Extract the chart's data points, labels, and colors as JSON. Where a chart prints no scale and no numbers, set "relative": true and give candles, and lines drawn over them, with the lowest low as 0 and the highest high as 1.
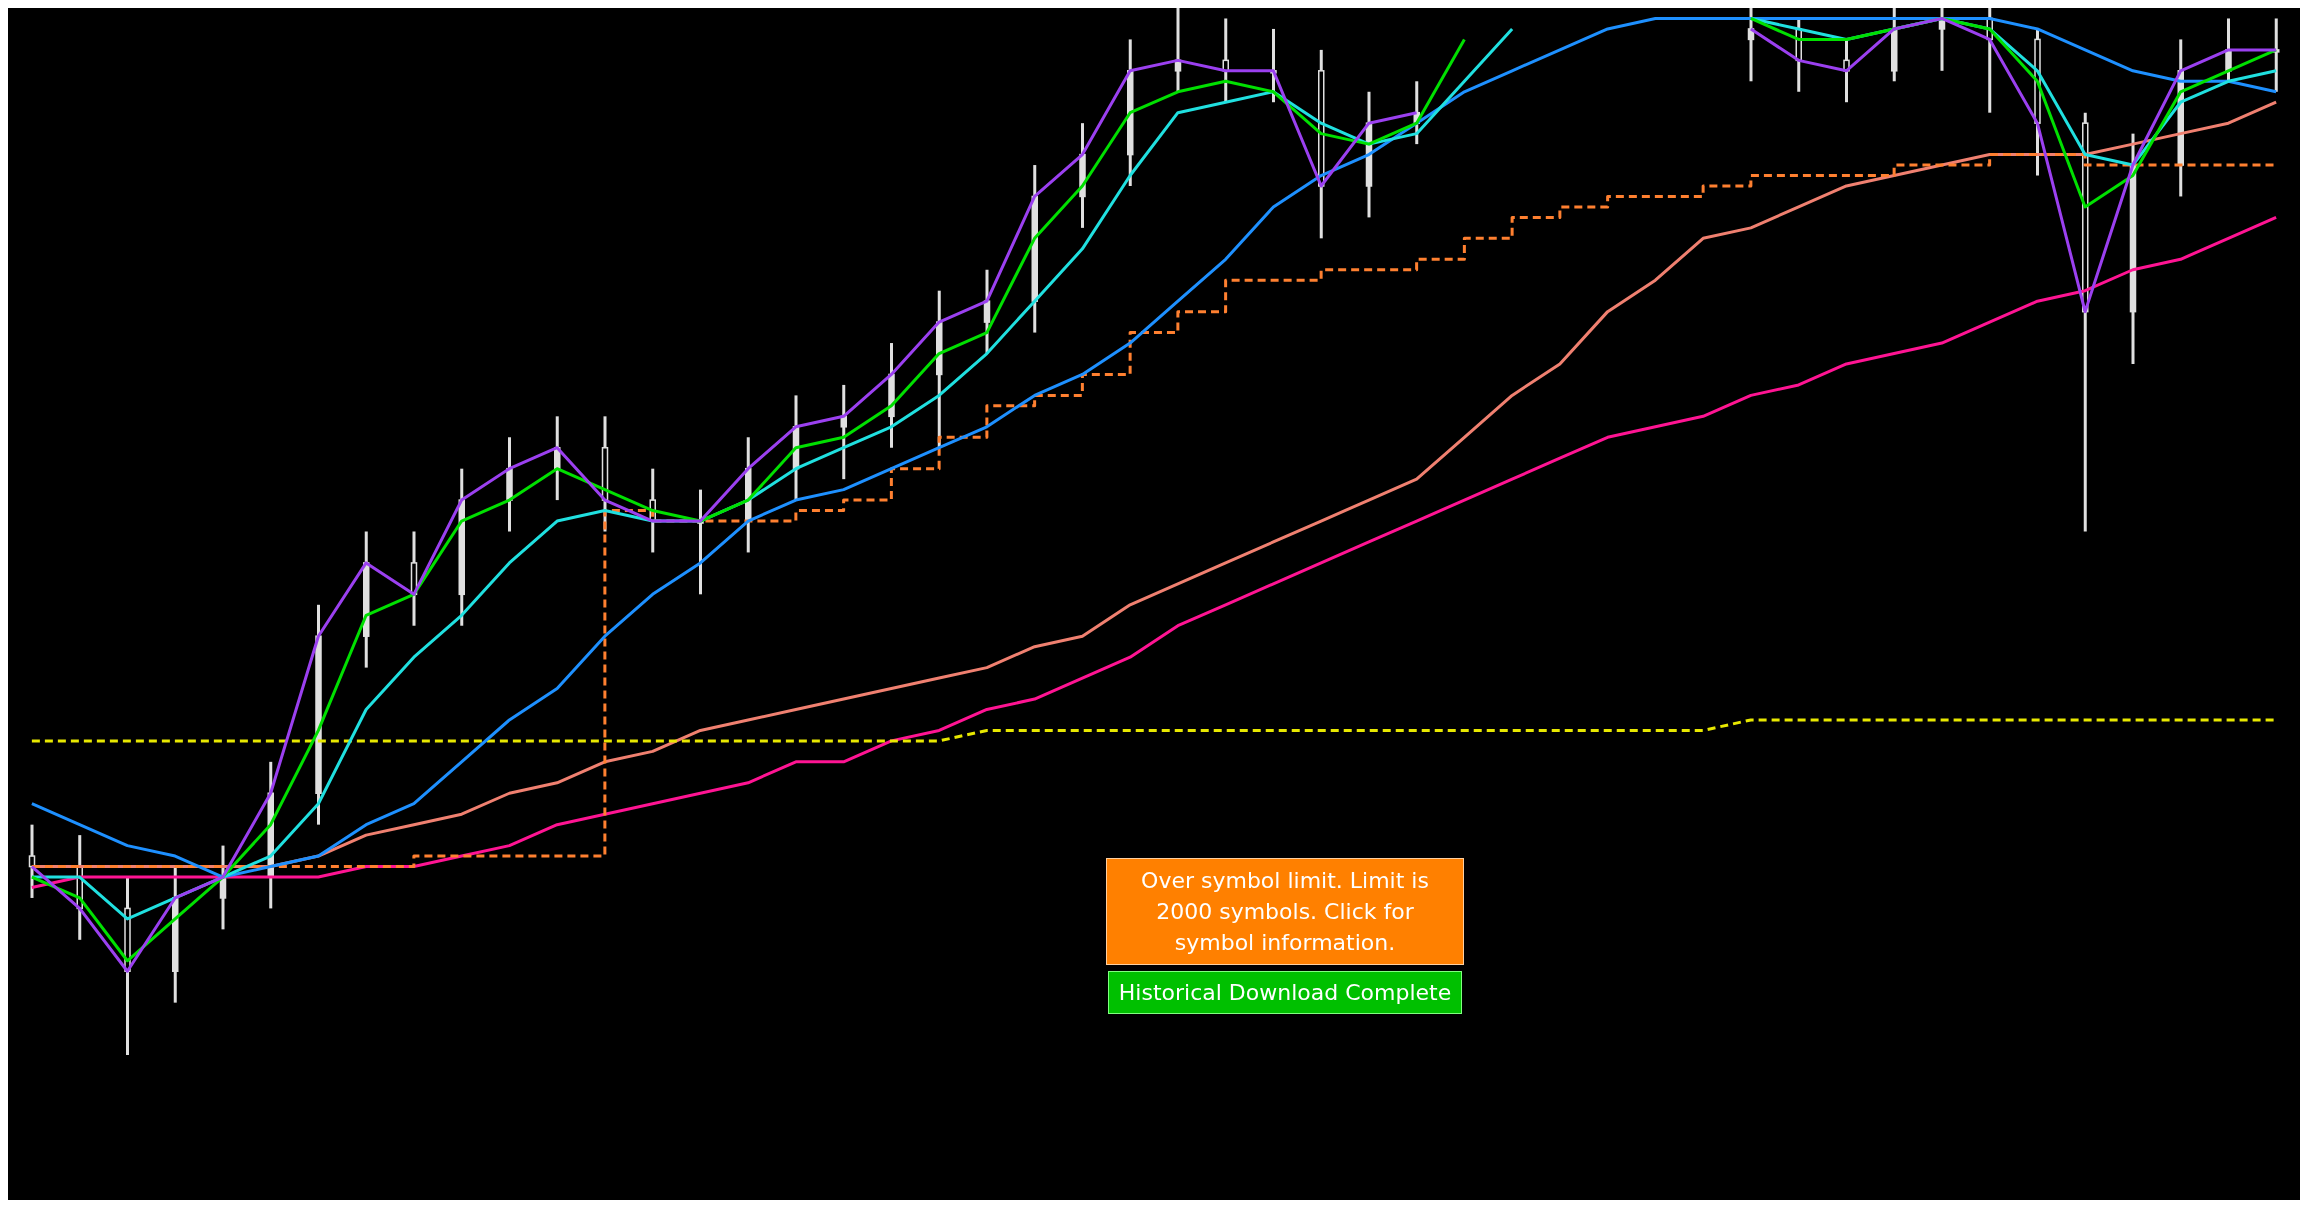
{
  "chart_data": {
    "type": "candlestick",
    "relative": true,
    "tick_labels": false,
    "color": "#e0e0e0",
    "categories": [
      null,
      null,
      null,
      null,
      null,
      null,
      null,
      null,
      null,
      null,
      null,
      null,
      null,
      null,
      null,
      null,
      null,
      null,
      null,
      null,
      null,
      null,
      null,
      null,
      null,
      null,
      null,
      null,
      null,
      null,
      null,
      null,
      null,
      null,
      null,
      null,
      null,
      null,
      null,
      null,
      null,
      null,
      null,
      null,
      null,
      null,
      null,
      null
    ],
    "ohlc": [
      [
        0.19,
        0.22,
        0.15,
        0.18
      ],
      [
        0.18,
        0.21,
        0.11,
        0.14
      ],
      [
        0.14,
        0.17,
        0.0,
        0.08
      ],
      [
        0.08,
        0.18,
        0.05,
        0.15
      ],
      [
        0.15,
        0.2,
        0.12,
        0.17
      ],
      [
        0.17,
        0.28,
        0.14,
        0.25
      ],
      [
        0.25,
        0.43,
        0.22,
        0.4
      ],
      [
        0.4,
        0.5,
        0.37,
        0.47
      ],
      [
        0.47,
        0.5,
        0.41,
        0.44
      ],
      [
        0.44,
        0.56,
        0.41,
        0.53
      ],
      [
        0.53,
        0.59,
        0.5,
        0.56
      ],
      [
        0.56,
        0.61,
        0.53,
        0.58
      ],
      [
        0.58,
        0.61,
        0.5,
        0.53
      ],
      [
        0.53,
        0.56,
        0.48,
        0.51
      ],
      [
        0.51,
        0.54,
        0.44,
        0.51
      ],
      [
        0.51,
        0.59,
        0.48,
        0.56
      ],
      [
        0.56,
        0.63,
        0.53,
        0.6
      ],
      [
        0.6,
        0.64,
        0.55,
        0.61
      ],
      [
        0.61,
        0.68,
        0.58,
        0.65
      ],
      [
        0.65,
        0.73,
        0.58,
        0.7
      ],
      [
        0.7,
        0.75,
        0.67,
        0.72
      ],
      [
        0.72,
        0.85,
        0.69,
        0.82
      ],
      [
        0.82,
        0.89,
        0.79,
        0.86
      ],
      [
        0.86,
        0.97,
        0.83,
        0.94
      ],
      [
        0.94,
        1.0,
        0.92,
        0.95
      ],
      [
        0.95,
        0.99,
        0.91,
        0.94
      ],
      [
        0.94,
        0.98,
        0.91,
        0.94
      ],
      [
        0.94,
        0.96,
        0.78,
        0.83
      ],
      [
        0.83,
        0.92,
        0.8,
        0.89
      ],
      [
        0.89,
        0.93,
        0.87,
        0.9
      ],
      null,
      null,
      null,
      null,
      null,
      null,
      [
        0.97,
        1.0,
        0.93,
        0.98
      ],
      [
        0.98,
        0.99,
        0.92,
        0.95
      ],
      [
        0.95,
        0.97,
        0.91,
        0.94
      ],
      [
        0.94,
        1.0,
        0.93,
        0.98
      ],
      [
        0.98,
        1.0,
        0.94,
        0.99
      ],
      [
        0.99,
        1.0,
        0.9,
        0.97
      ],
      [
        0.97,
        0.98,
        0.84,
        0.89
      ],
      [
        0.89,
        0.9,
        0.5,
        0.71
      ],
      [
        0.71,
        0.88,
        0.66,
        0.85
      ],
      [
        0.85,
        0.97,
        0.82,
        0.94
      ],
      [
        0.94,
        0.99,
        0.93,
        0.96
      ],
      [
        0.96,
        0.99,
        0.92,
        0.96
      ]
    ],
    "series": [
      {
        "type": "line",
        "color": "#f08070",
        "values": [
          0.18,
          0.18,
          0.18,
          0.18,
          0.18,
          0.18,
          0.19,
          0.21,
          0.22,
          0.23,
          0.25,
          0.26,
          0.28,
          0.29,
          0.31,
          0.32,
          0.33,
          0.34,
          0.35,
          0.36,
          0.37,
          0.39,
          0.4,
          0.43,
          0.45,
          0.47,
          0.49,
          0.51,
          0.53,
          0.55,
          0.59,
          0.63,
          0.66,
          0.71,
          0.74,
          0.78,
          0.79,
          0.81,
          0.83,
          0.84,
          0.85,
          0.86,
          0.86,
          0.86,
          0.87,
          0.88,
          0.89,
          0.91
        ]
      },
      {
        "type": "line",
        "color": "#ff1493",
        "values": [
          0.16,
          0.17,
          0.17,
          0.17,
          0.17,
          0.17,
          0.17,
          0.18,
          0.18,
          0.19,
          0.2,
          0.22,
          0.23,
          0.24,
          0.25,
          0.26,
          0.28,
          0.28,
          0.3,
          0.31,
          0.33,
          0.34,
          0.36,
          0.38,
          0.41,
          0.43,
          0.45,
          0.47,
          0.49,
          0.51,
          0.53,
          0.55,
          0.57,
          0.59,
          0.6,
          0.61,
          0.63,
          0.64,
          0.66,
          0.67,
          0.68,
          0.7,
          0.72,
          0.73,
          0.75,
          0.76,
          0.78,
          0.8
        ]
      },
      {
        "type": "line",
        "color": "#e8e800",
        "line_style": "dashed",
        "values": [
          0.3,
          0.3,
          0.3,
          0.3,
          0.3,
          0.3,
          0.3,
          0.3,
          0.3,
          0.3,
          0.3,
          0.3,
          0.3,
          0.3,
          0.3,
          0.3,
          0.3,
          0.3,
          0.3,
          0.3,
          0.31,
          0.31,
          0.31,
          0.31,
          0.31,
          0.31,
          0.31,
          0.31,
          0.31,
          0.31,
          0.31,
          0.31,
          0.31,
          0.31,
          0.31,
          0.31,
          0.32,
          0.32,
          0.32,
          0.32,
          0.32,
          0.32,
          0.32,
          0.32,
          0.32,
          0.32,
          0.32,
          0.32
        ]
      },
      {
        "type": "step",
        "color": "#ff8030",
        "line_style": "dashed",
        "values": [
          0.18,
          0.18,
          0.18,
          0.18,
          0.18,
          0.18,
          0.18,
          0.18,
          0.19,
          0.19,
          0.19,
          0.19,
          0.52,
          0.51,
          0.51,
          0.51,
          0.52,
          0.53,
          0.56,
          0.59,
          0.62,
          0.63,
          0.65,
          0.69,
          0.71,
          0.74,
          0.74,
          0.75,
          0.75,
          0.76,
          0.78,
          0.8,
          0.81,
          0.82,
          0.82,
          0.83,
          0.84,
          0.84,
          0.84,
          0.85,
          0.85,
          0.86,
          0.86,
          0.85,
          0.85,
          0.85,
          0.85,
          0.85
        ]
      },
      {
        "type": "line",
        "color": "#1e90ff",
        "values": [
          0.24,
          0.22,
          0.2,
          0.19,
          0.17,
          0.18,
          0.19,
          0.22,
          0.24,
          0.28,
          0.32,
          0.35,
          0.4,
          0.44,
          0.47,
          0.51,
          0.53,
          0.54,
          0.56,
          0.58,
          0.6,
          0.63,
          0.65,
          0.68,
          0.72,
          0.76,
          0.81,
          0.84,
          0.86,
          0.89,
          0.92,
          0.94,
          0.96,
          0.98,
          0.99,
          0.99,
          0.99,
          0.99,
          0.99,
          0.99,
          0.99,
          0.99,
          0.98,
          0.96,
          0.94,
          0.93,
          0.93,
          0.92
        ]
      },
      {
        "type": "line",
        "color": "#20e0e0",
        "values": [
          0.17,
          0.17,
          0.13,
          0.15,
          0.17,
          0.19,
          0.24,
          0.33,
          0.38,
          0.42,
          0.47,
          0.51,
          0.52,
          0.51,
          0.51,
          0.53,
          0.56,
          0.58,
          0.6,
          0.63,
          0.67,
          0.72,
          0.77,
          0.84,
          0.9,
          0.91,
          0.92,
          0.89,
          0.87,
          0.88,
          0.93,
          0.98,
          null,
          null,
          null,
          null,
          0.99,
          0.98,
          0.97,
          0.98,
          0.99,
          0.98,
          0.94,
          0.86,
          0.85,
          0.91,
          0.93,
          0.94
        ]
      },
      {
        "type": "line",
        "color": "#00e000",
        "values": [
          0.17,
          0.15,
          0.09,
          0.13,
          0.17,
          0.22,
          0.31,
          0.42,
          0.44,
          0.51,
          0.53,
          0.56,
          0.54,
          0.52,
          0.51,
          0.53,
          0.58,
          0.59,
          0.62,
          0.67,
          0.69,
          0.78,
          0.83,
          0.9,
          0.92,
          0.93,
          0.92,
          0.88,
          0.87,
          0.89,
          0.97,
          null,
          null,
          null,
          null,
          null,
          0.99,
          0.97,
          0.97,
          0.98,
          0.99,
          0.98,
          0.93,
          0.81,
          0.84,
          0.92,
          0.94,
          0.96
        ]
      },
      {
        "type": "line",
        "color": "#9b40f0",
        "values": [
          0.18,
          0.14,
          0.08,
          0.15,
          0.17,
          0.25,
          0.4,
          0.47,
          0.44,
          0.53,
          0.56,
          0.58,
          0.53,
          0.51,
          0.51,
          0.56,
          0.6,
          0.61,
          0.65,
          0.7,
          0.72,
          0.82,
          0.86,
          0.94,
          0.95,
          0.94,
          0.94,
          0.83,
          0.89,
          0.9,
          null,
          null,
          null,
          null,
          null,
          null,
          0.98,
          0.95,
          0.94,
          0.98,
          0.99,
          0.97,
          0.89,
          0.71,
          0.85,
          0.94,
          0.96,
          0.96
        ]
      }
    ],
    "annotations": [
      "Over symbol limit.  Limit is 2000 symbols.  Click for symbol information.",
      "Historical Download Complete"
    ]
  }
}
